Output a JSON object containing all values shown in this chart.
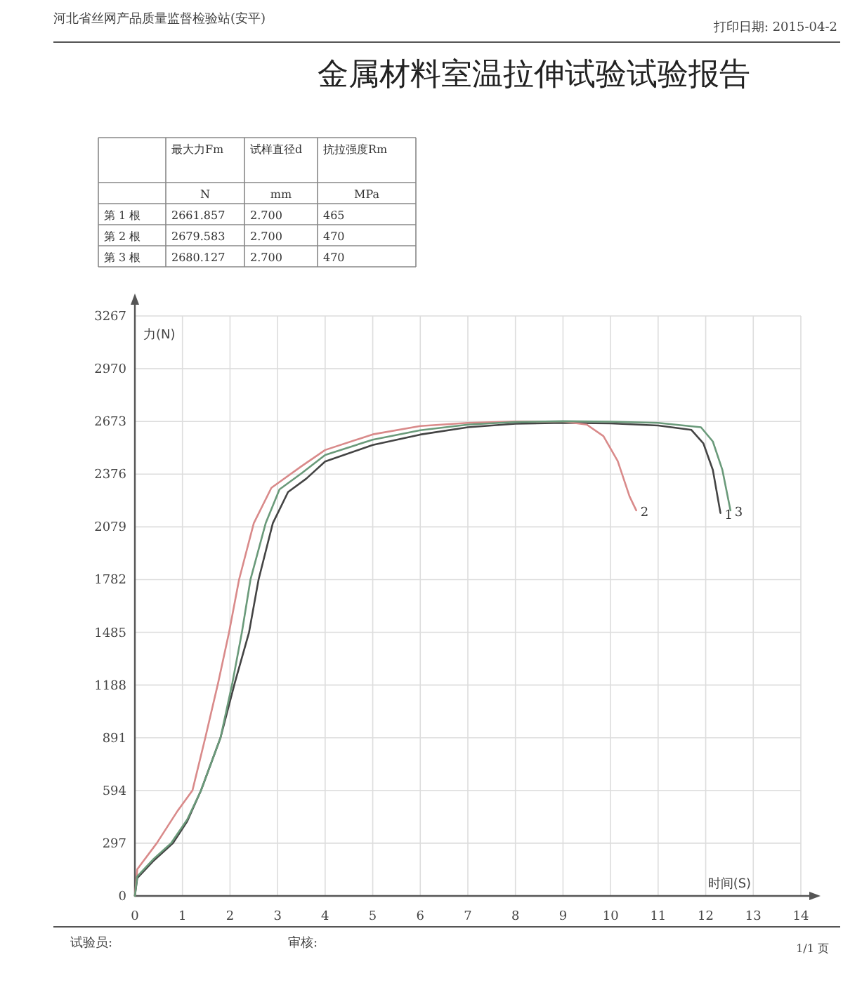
{
  "chart_data": {
    "type": "line",
    "title": "金属材料室温拉伸试验试验报告",
    "xlabel": "时间(S)",
    "ylabel": "力(N)",
    "xlim": [
      0,
      14
    ],
    "ylim": [
      0,
      3267
    ],
    "xticks": [
      0,
      1,
      2,
      3,
      4,
      5,
      6,
      7,
      8,
      9,
      10,
      11,
      12,
      13,
      14
    ],
    "yticks": [
      0,
      297,
      594,
      891,
      1188,
      1485,
      1782,
      2079,
      2376,
      2673,
      2970,
      3267
    ],
    "grid": true,
    "series": [
      {
        "name": "1",
        "color": "#444444",
        "x": [
          0,
          0.05,
          0.4,
          0.8,
          1.1,
          1.39,
          1.8,
          2.1,
          2.4,
          2.6,
          2.9,
          3.22,
          3.6,
          4,
          5,
          6,
          7,
          8,
          9,
          10,
          11,
          11.7,
          11.95,
          12.15,
          12.31
        ],
        "values": [
          0,
          100,
          200,
          297,
          420,
          594,
          891,
          1200,
          1485,
          1782,
          2100,
          2275,
          2350,
          2447,
          2540,
          2599,
          2640,
          2660,
          2665,
          2662,
          2650,
          2625,
          2550,
          2400,
          2157
        ]
      },
      {
        "name": "2",
        "color": "#d98a8a",
        "x": [
          0,
          0.05,
          0.46,
          0.9,
          1.21,
          1.48,
          1.75,
          1.98,
          2.19,
          2.5,
          2.87,
          3.5,
          4,
          5,
          6,
          7,
          8,
          9,
          9.5,
          9.85,
          10.15,
          10.4,
          10.54
        ],
        "values": [
          0,
          150,
          297,
          480,
          594,
          891,
          1200,
          1485,
          1782,
          2100,
          2299,
          2420,
          2512,
          2600,
          2647,
          2665,
          2673,
          2673,
          2655,
          2590,
          2450,
          2250,
          2172
        ]
      },
      {
        "name": "3",
        "color": "#6a9a7a",
        "x": [
          0,
          0.05,
          0.4,
          0.76,
          1.1,
          1.39,
          1.8,
          2.05,
          2.25,
          2.43,
          2.75,
          3.04,
          3.5,
          4,
          5,
          6,
          7,
          8,
          9,
          10,
          11,
          11.9,
          12.15,
          12.35,
          12.52
        ],
        "values": [
          0,
          110,
          210,
          297,
          430,
          594,
          891,
          1200,
          1485,
          1782,
          2100,
          2290,
          2380,
          2484,
          2570,
          2623,
          2655,
          2670,
          2674,
          2672,
          2665,
          2640,
          2560,
          2400,
          2172
        ]
      }
    ],
    "annotations": [
      "河北省丝网产品质量监督检验站(安平)",
      "打印日期: 2015-04-2",
      "最大力Fm",
      "试样直径d",
      "抗拉强度Rm",
      "N",
      "mm",
      "MPa",
      "第 1 根",
      "2661.857",
      "2.700",
      "465",
      "第 2 根",
      "2679.583",
      "2.700",
      "470",
      "第 3 根",
      "2680.127",
      "2.700",
      "470",
      "试验员:",
      "审核:",
      "1/1 页"
    ]
  }
}
